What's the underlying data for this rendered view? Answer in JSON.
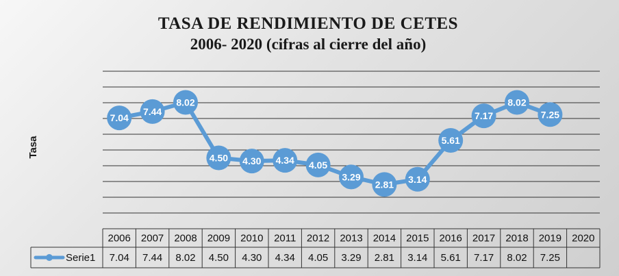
{
  "chart_data": {
    "type": "line",
    "title": "TASA DE RENDIMIENTO DE  CETES",
    "subtitle": "2006- 2020 (cifras al cierre del año)",
    "ylabel": "Tasa",
    "xlabel": "",
    "categories": [
      "2006",
      "2007",
      "2008",
      "2009",
      "2010",
      "2011",
      "2012",
      "2013",
      "2014",
      "2015",
      "2016",
      "2017",
      "2018",
      "2019",
      "2020"
    ],
    "series": [
      {
        "name": "Serie1",
        "values": [
          7.04,
          7.44,
          8.02,
          4.5,
          4.3,
          4.34,
          4.05,
          3.29,
          2.81,
          3.14,
          5.61,
          7.17,
          8.02,
          7.25,
          null
        ],
        "labels": [
          "7.04",
          "7.44",
          "8.02",
          "4.50",
          "4.30",
          "4.34",
          "4.05",
          "3.29",
          "2.81",
          "3.14",
          "5.61",
          "7.17",
          "8.02",
          "7.25",
          ""
        ],
        "color": "#5b9bd5"
      }
    ],
    "ylim": [
      0,
      10
    ],
    "grid": true,
    "legend": "data-table",
    "data_table": true
  }
}
